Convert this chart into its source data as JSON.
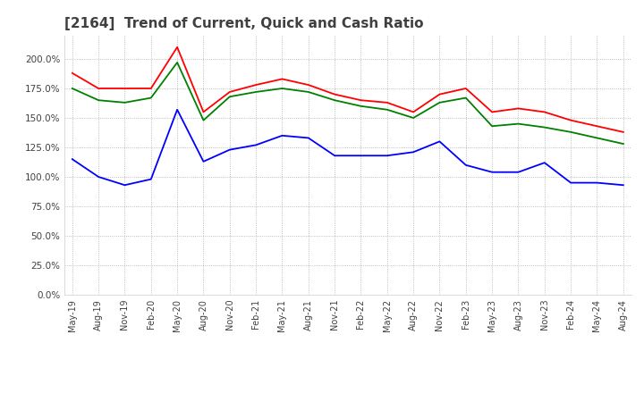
{
  "title": "[2164]  Trend of Current, Quick and Cash Ratio",
  "x_labels": [
    "May-19",
    "Aug-19",
    "Nov-19",
    "Feb-20",
    "May-20",
    "Aug-20",
    "Nov-20",
    "Feb-21",
    "May-21",
    "Aug-21",
    "Nov-21",
    "Feb-22",
    "May-22",
    "Aug-22",
    "Nov-22",
    "Feb-23",
    "May-23",
    "Aug-23",
    "Nov-23",
    "Feb-24",
    "May-24",
    "Aug-24"
  ],
  "current_ratio": [
    188,
    175,
    175,
    175,
    210,
    155,
    172,
    178,
    183,
    178,
    170,
    165,
    163,
    155,
    170,
    175,
    155,
    158,
    155,
    148,
    143,
    138
  ],
  "quick_ratio": [
    175,
    165,
    163,
    167,
    197,
    148,
    168,
    172,
    175,
    172,
    165,
    160,
    157,
    150,
    163,
    167,
    143,
    145,
    142,
    138,
    133,
    128
  ],
  "cash_ratio": [
    115,
    100,
    93,
    98,
    157,
    113,
    123,
    127,
    135,
    133,
    118,
    118,
    118,
    121,
    130,
    110,
    104,
    104,
    112,
    95,
    95,
    93
  ],
  "current_color": "#ff0000",
  "quick_color": "#008000",
  "cash_color": "#0000ff",
  "background_color": "#ffffff",
  "grid_color": "#aaaaaa",
  "ylim": [
    0,
    220
  ],
  "yticks": [
    0,
    25,
    50,
    75,
    100,
    125,
    150,
    175,
    200
  ],
  "title_color": "#404040",
  "title_fontsize": 11
}
